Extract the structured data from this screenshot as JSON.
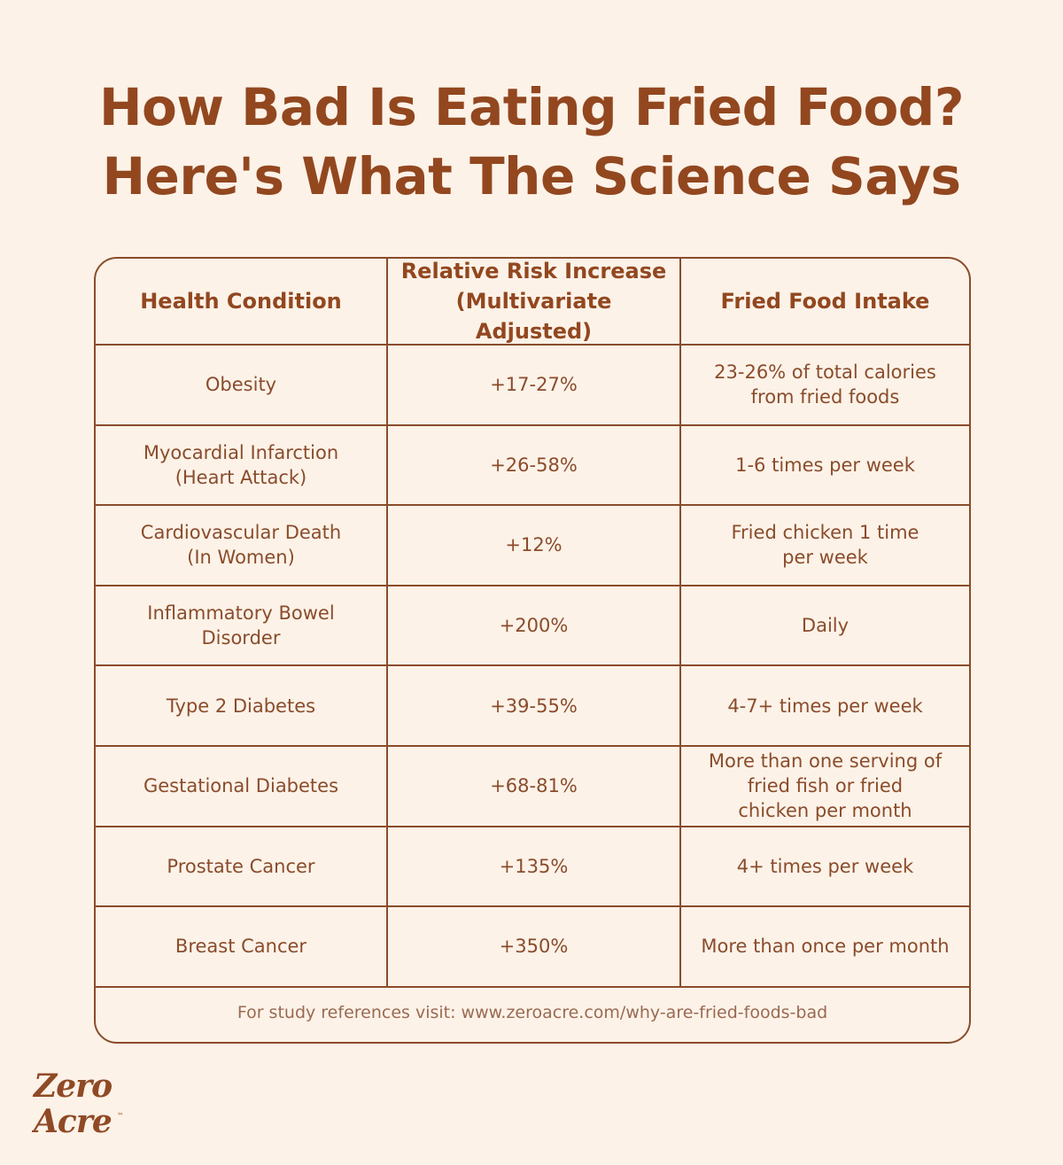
{
  "title": {
    "line1": "How Bad Is Eating Fried Food?",
    "line2": "Here's What The Science Says"
  },
  "table": {
    "headers": {
      "condition": "Health Condition",
      "risk": "Relative Risk Increase\n(Multivariate Adjusted)",
      "intake": "Fried Food Intake"
    },
    "rows": [
      {
        "condition": "Obesity",
        "risk": "+17-27%",
        "intake": "23-26% of total calories\nfrom fried foods"
      },
      {
        "condition": "Myocardial Infarction\n(Heart Attack)",
        "risk": "+26-58%",
        "intake": "1-6 times per week"
      },
      {
        "condition": "Cardiovascular Death\n(In Women)",
        "risk": "+12%",
        "intake": "Fried chicken 1 time\nper week"
      },
      {
        "condition": "Inflammatory Bowel\nDisorder",
        "risk": "+200%",
        "intake": "Daily"
      },
      {
        "condition": "Type 2 Diabetes",
        "risk": "+39-55%",
        "intake": "4-7+ times per week"
      },
      {
        "condition": "Gestational Diabetes",
        "risk": "+68-81%",
        "intake": "More than one serving of\nfried fish or fried\nchicken per month"
      },
      {
        "condition": "Prostate Cancer",
        "risk": "+135%",
        "intake": "4+ times per week"
      },
      {
        "condition": "Breast Cancer",
        "risk": "+350%",
        "intake": "More than once per month"
      }
    ],
    "footer": "For study references visit: www.zeroacre.com/why-are-fried-foods-bad"
  },
  "logo": {
    "line1": "Zero",
    "line2": "Acre",
    "mark": "™"
  }
}
